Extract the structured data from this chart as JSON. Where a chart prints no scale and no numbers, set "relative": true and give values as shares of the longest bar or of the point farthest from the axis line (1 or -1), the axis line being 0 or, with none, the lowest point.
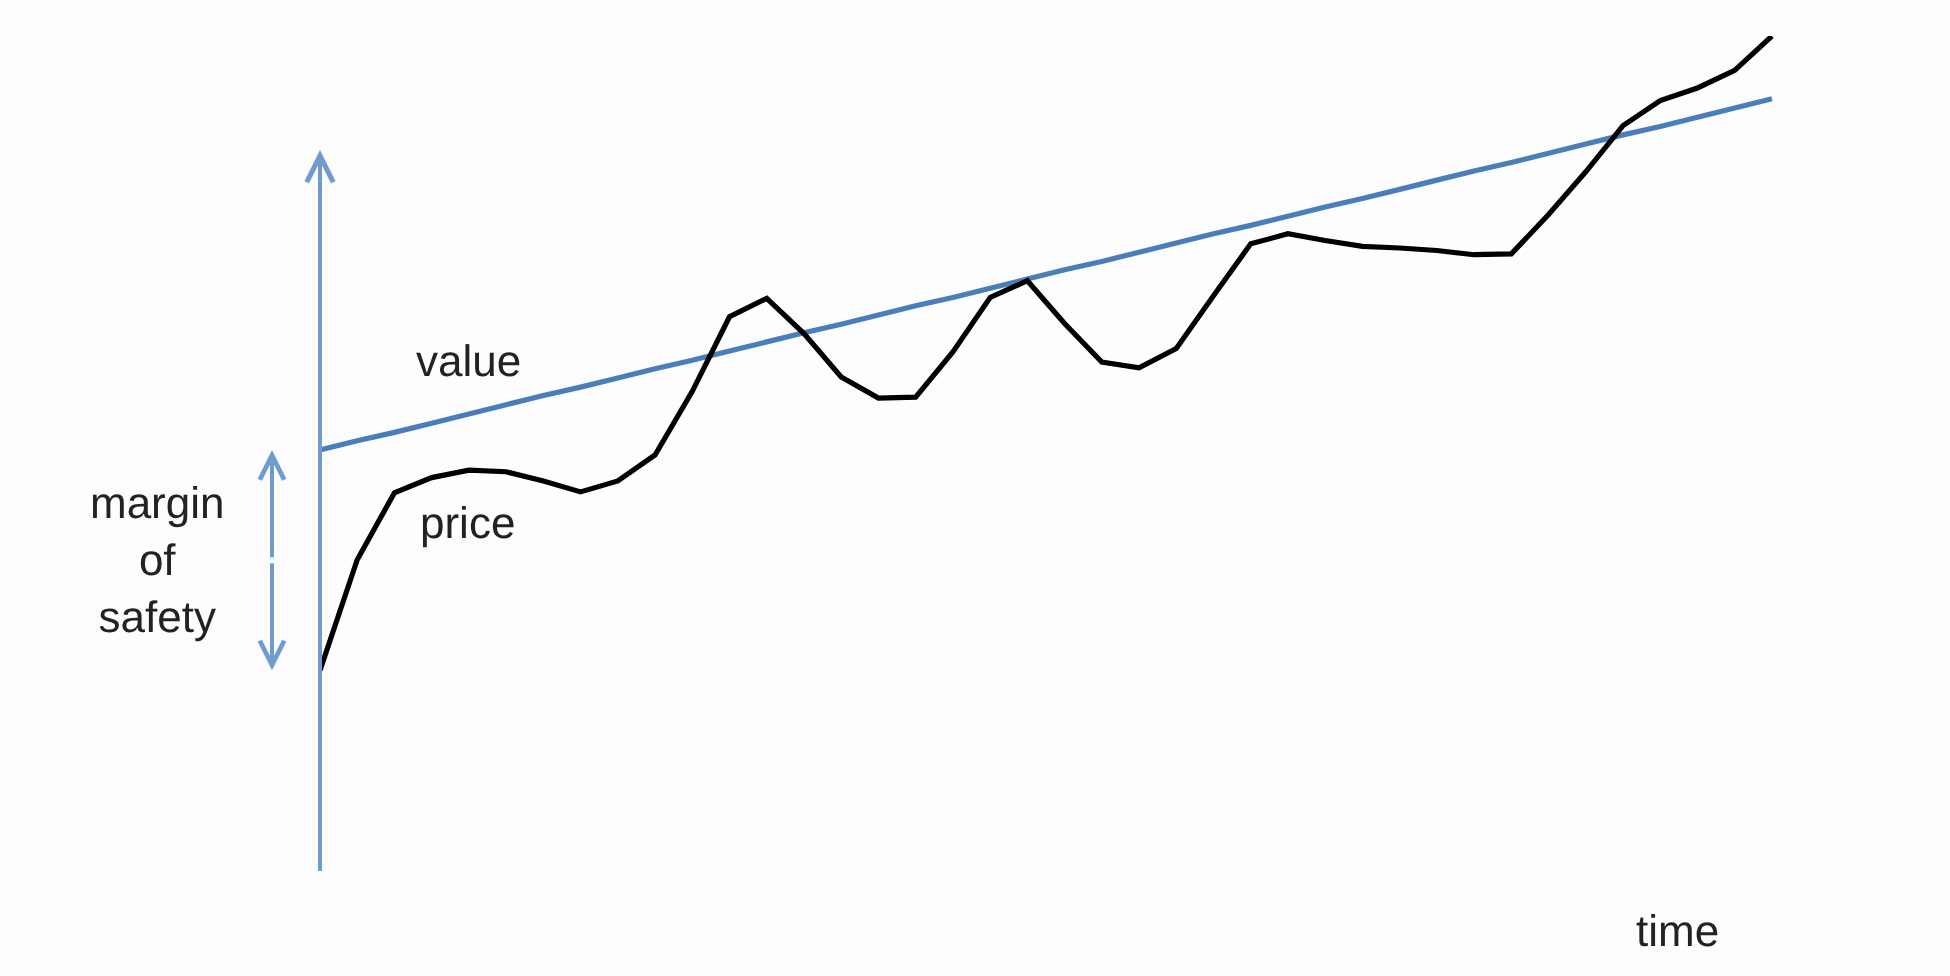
{
  "chart_data": {
    "type": "line",
    "relative": true,
    "xlabel": "time",
    "legend": false,
    "marker": "none",
    "annotations": [
      "margin\nof\nsafety"
    ],
    "categories": [
      null,
      null,
      null,
      null,
      null,
      null,
      null,
      null,
      null,
      null,
      null,
      null,
      null,
      null,
      null,
      null,
      null,
      null,
      null,
      null,
      null,
      null,
      null,
      null,
      null,
      null,
      null,
      null,
      null,
      null,
      null,
      null,
      null,
      null,
      null,
      null,
      null,
      null,
      null,
      null
    ],
    "series": [
      {
        "name": "value",
        "color": "#4a7ebb",
        "values": [
          0.506,
          0.517,
          0.527,
          0.538,
          0.549,
          0.56,
          0.571,
          0.581,
          0.592,
          0.603,
          0.613,
          0.624,
          0.635,
          0.646,
          0.656,
          0.667,
          0.678,
          0.688,
          0.699,
          0.71,
          0.721,
          0.731,
          0.742,
          0.753,
          0.764,
          0.774,
          0.785,
          0.796,
          0.806,
          0.817,
          0.828,
          0.839,
          0.849,
          0.86,
          0.871,
          0.882,
          0.892,
          0.903,
          0.914,
          0.925
        ]
      },
      {
        "name": "price",
        "color": "#000000",
        "values": [
          0.243,
          0.375,
          0.455,
          0.473,
          0.482,
          0.48,
          0.469,
          0.456,
          0.469,
          0.5,
          0.576,
          0.665,
          0.687,
          0.645,
          0.593,
          0.568,
          0.569,
          0.623,
          0.688,
          0.708,
          0.657,
          0.611,
          0.604,
          0.627,
          0.69,
          0.752,
          0.764,
          0.756,
          0.749,
          0.747,
          0.744,
          0.739,
          0.74,
          0.787,
          0.838,
          0.893,
          0.923,
          0.938,
          0.959,
          1.0
        ]
      }
    ]
  }
}
